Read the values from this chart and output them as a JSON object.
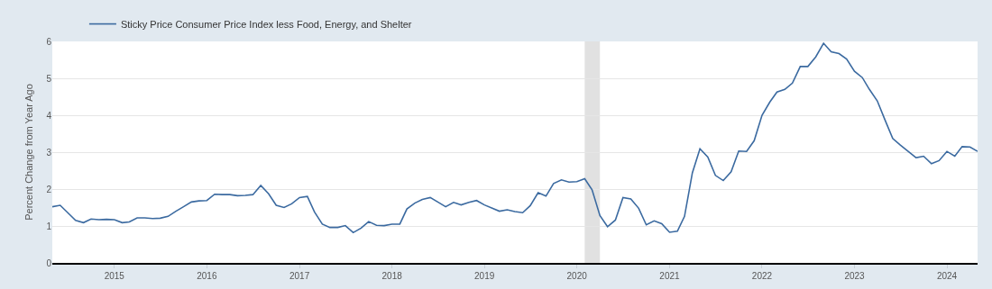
{
  "chart_data": {
    "type": "line",
    "ylabel": "Percent Change from Year Ago",
    "x": [
      "2014-05",
      "2014-06",
      "2014-07",
      "2014-08",
      "2014-09",
      "2014-10",
      "2014-11",
      "2014-12",
      "2015-01",
      "2015-02",
      "2015-03",
      "2015-04",
      "2015-05",
      "2015-06",
      "2015-07",
      "2015-08",
      "2015-09",
      "2015-10",
      "2015-11",
      "2015-12",
      "2016-01",
      "2016-02",
      "2016-03",
      "2016-04",
      "2016-05",
      "2016-06",
      "2016-07",
      "2016-08",
      "2016-09",
      "2016-10",
      "2016-11",
      "2016-12",
      "2017-01",
      "2017-02",
      "2017-03",
      "2017-04",
      "2017-05",
      "2017-06",
      "2017-07",
      "2017-08",
      "2017-09",
      "2017-10",
      "2017-11",
      "2017-12",
      "2018-01",
      "2018-02",
      "2018-03",
      "2018-04",
      "2018-05",
      "2018-06",
      "2018-07",
      "2018-08",
      "2018-09",
      "2018-10",
      "2018-11",
      "2018-12",
      "2019-01",
      "2019-02",
      "2019-03",
      "2019-04",
      "2019-05",
      "2019-06",
      "2019-07",
      "2019-08",
      "2019-09",
      "2019-10",
      "2019-11",
      "2019-12",
      "2020-01",
      "2020-02",
      "2020-03",
      "2020-04",
      "2020-05",
      "2020-06",
      "2020-07",
      "2020-08",
      "2020-09",
      "2020-10",
      "2020-11",
      "2020-12",
      "2021-01",
      "2021-02",
      "2021-03",
      "2021-04",
      "2021-05",
      "2021-06",
      "2021-07",
      "2021-08",
      "2021-09",
      "2021-10",
      "2021-11",
      "2021-12",
      "2022-01",
      "2022-02",
      "2022-03",
      "2022-04",
      "2022-05",
      "2022-06",
      "2022-07",
      "2022-08",
      "2022-09",
      "2022-10",
      "2022-11",
      "2022-12",
      "2023-01",
      "2023-02",
      "2023-03",
      "2023-04",
      "2023-05",
      "2023-06",
      "2023-07",
      "2023-08",
      "2023-09",
      "2023-10",
      "2023-11",
      "2023-12",
      "2024-01",
      "2024-02",
      "2024-03",
      "2024-04",
      "2024-05"
    ],
    "series": [
      {
        "name": "Sticky Price Consumer Price Index less Food, Energy, and Shelter",
        "color": "#3b6aa0",
        "values": [
          1.52,
          1.56,
          1.36,
          1.15,
          1.09,
          1.19,
          1.17,
          1.18,
          1.17,
          1.09,
          1.11,
          1.22,
          1.22,
          1.2,
          1.21,
          1.26,
          1.4,
          1.52,
          1.65,
          1.68,
          1.69,
          1.86,
          1.85,
          1.85,
          1.82,
          1.83,
          1.85,
          2.1,
          1.87,
          1.56,
          1.5,
          1.6,
          1.77,
          1.8,
          1.38,
          1.05,
          0.96,
          0.96,
          1.01,
          0.82,
          0.94,
          1.12,
          1.02,
          1.01,
          1.05,
          1.05,
          1.46,
          1.62,
          1.72,
          1.77,
          1.65,
          1.52,
          1.64,
          1.57,
          1.64,
          1.69,
          1.57,
          1.48,
          1.4,
          1.44,
          1.39,
          1.36,
          1.55,
          1.9,
          1.81,
          2.15,
          2.25,
          2.19,
          2.2,
          2.28,
          1.98,
          1.28,
          0.98,
          1.16,
          1.77,
          1.73,
          1.48,
          1.03,
          1.14,
          1.06,
          0.83,
          0.86,
          1.26,
          2.44,
          3.09,
          2.87,
          2.37,
          2.23,
          2.47,
          3.03,
          3.02,
          3.31,
          4.0,
          4.36,
          4.63,
          4.7,
          4.87,
          5.32,
          5.32,
          5.58,
          5.95,
          5.72,
          5.67,
          5.52,
          5.19,
          5.02,
          4.7,
          4.39,
          3.88,
          3.37,
          3.19,
          3.02,
          2.85,
          2.89,
          2.69,
          2.77,
          3.02,
          2.89,
          3.15,
          3.14,
          3.02
        ]
      }
    ],
    "xlim": [
      "2014-05",
      "2024-05"
    ],
    "xticks": [
      {
        "value": "2015-01",
        "label": "2015"
      },
      {
        "value": "2016-01",
        "label": "2016"
      },
      {
        "value": "2017-01",
        "label": "2017"
      },
      {
        "value": "2018-01",
        "label": "2018"
      },
      {
        "value": "2019-01",
        "label": "2019"
      },
      {
        "value": "2020-01",
        "label": "2020"
      },
      {
        "value": "2021-01",
        "label": "2021"
      },
      {
        "value": "2022-01",
        "label": "2022"
      },
      {
        "value": "2023-01",
        "label": "2023"
      },
      {
        "value": "2024-01",
        "label": "2024"
      }
    ],
    "ylim": [
      0,
      6
    ],
    "yticks": [
      0,
      1,
      2,
      3,
      4,
      5,
      6
    ],
    "grid": "y",
    "legend": "top left",
    "bands": [
      {
        "axis": "x",
        "from": "2020-02",
        "to": "2020-04",
        "color": "#e1e1e1"
      }
    ]
  }
}
